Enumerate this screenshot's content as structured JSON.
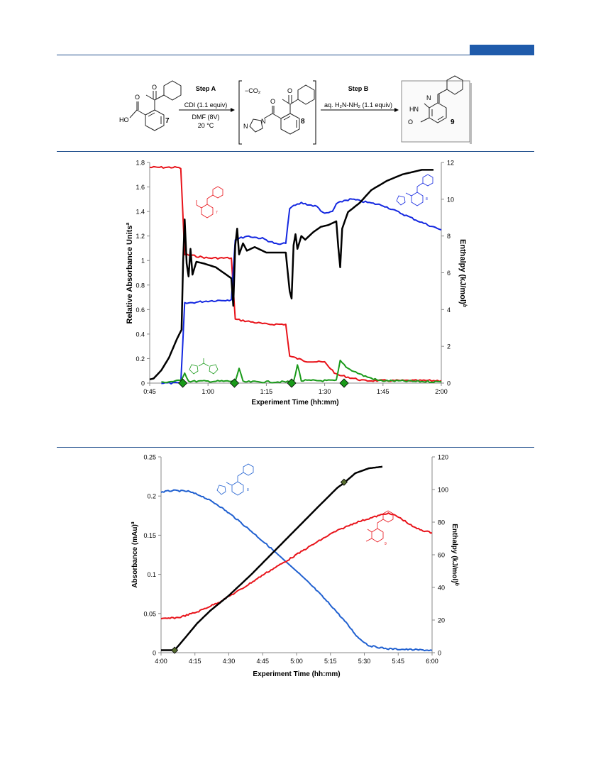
{
  "scheme": {
    "compound7": {
      "label": "7",
      "ho": "HO",
      "o1": "O",
      "o2": "O"
    },
    "stepA": {
      "title": "Step A",
      "reagent": "CDI (1.1 equiv)",
      "solvent": "DMF (8V)",
      "temp": "20 °C"
    },
    "compound8": {
      "label": "8",
      "co2": "−CO₂",
      "n1": "N",
      "n2": "N",
      "o1": "O",
      "o2": "O"
    },
    "stepB": {
      "title": "Step B",
      "reagent": "aq. H₂N-NH₂ (1.1 equiv)"
    },
    "compound9": {
      "label": "9",
      "hn": "HN",
      "n": "N",
      "o": "O"
    }
  },
  "colors": {
    "red": "#e8131a",
    "blue": "#1428e0",
    "black": "#000000",
    "green": "#1a9a1a",
    "blue2": "#2060d0",
    "rule": "#1f4e8c"
  },
  "chart_data": [
    {
      "type": "line",
      "xlabel": "Experiment Time (hh:mm)",
      "ylabel": "Relative Absorbance Units",
      "ylabel_sup": "a",
      "y2label": "Enthalpy (kJ/mol)",
      "y2label_sup": "b",
      "xticks": [
        "0:45",
        "1:00",
        "1:15",
        "1:30",
        "1:45",
        "2:00"
      ],
      "xlim_min": [
        45,
        120
      ],
      "ylim": [
        0,
        1.8
      ],
      "yticks": [
        "0",
        "0.2",
        "0.4",
        "0.6",
        "0.8",
        "1",
        "1.2",
        "1.4",
        "1.6",
        "1.8"
      ],
      "y2lim": [
        0,
        12
      ],
      "y2ticks": [
        "0",
        "2",
        "4",
        "6",
        "8",
        "10",
        "12"
      ],
      "struct_labels": {
        "red": "7",
        "blue": "8"
      },
      "series": [
        {
          "color": "red",
          "axis": "left",
          "points": [
            [
              45,
              1.76
            ],
            [
              52,
              1.76
            ],
            [
              53,
              1.75
            ],
            [
              54,
              1.05
            ],
            [
              60,
              1.02
            ],
            [
              66,
              1.02
            ],
            [
              67,
              0.52
            ],
            [
              75,
              0.48
            ],
            [
              80,
              0.48
            ],
            [
              81,
              0.22
            ],
            [
              85,
              0.18
            ],
            [
              90,
              0.17
            ],
            [
              93,
              0.07
            ],
            [
              100,
              0.02
            ],
            [
              120,
              0.02
            ]
          ]
        },
        {
          "color": "blue",
          "axis": "left",
          "points": [
            [
              48,
              0.0
            ],
            [
              53,
              0.0
            ],
            [
              54,
              0.65
            ],
            [
              60,
              0.67
            ],
            [
              66,
              0.68
            ],
            [
              67,
              1.17
            ],
            [
              70,
              1.2
            ],
            [
              74,
              1.18
            ],
            [
              78,
              1.13
            ],
            [
              80,
              1.14
            ],
            [
              81,
              1.43
            ],
            [
              84,
              1.47
            ],
            [
              88,
              1.44
            ],
            [
              90,
              1.38
            ],
            [
              92,
              1.4
            ],
            [
              93,
              1.46
            ],
            [
              95,
              1.49
            ],
            [
              97,
              1.5
            ],
            [
              100,
              1.48
            ],
            [
              105,
              1.45
            ],
            [
              110,
              1.38
            ],
            [
              115,
              1.31
            ],
            [
              120,
              1.25
            ]
          ]
        },
        {
          "color": "green",
          "axis": "left",
          "points": [
            [
              48,
              0.005
            ],
            [
              53,
              0.02
            ],
            [
              54,
              0.085
            ],
            [
              55,
              0.015
            ],
            [
              67,
              0.015
            ],
            [
              68,
              0.12
            ],
            [
              69,
              0.01
            ],
            [
              82,
              0.01
            ],
            [
              83,
              0.15
            ],
            [
              84,
              0.02
            ],
            [
              93,
              0.02
            ],
            [
              94,
              0.18
            ],
            [
              96,
              0.12
            ],
            [
              100,
              0.06
            ],
            [
              104,
              0.02
            ],
            [
              120,
              0.01
            ]
          ]
        },
        {
          "color": "black",
          "axis": "right",
          "points": [
            [
              45,
              0.2
            ],
            [
              46,
              0.25
            ],
            [
              48,
              0.7
            ],
            [
              50,
              1.4
            ],
            [
              52,
              2.4
            ],
            [
              53.2,
              2.9
            ],
            [
              53.6,
              6.6
            ],
            [
              54,
              8.9
            ],
            [
              54.5,
              6.5
            ],
            [
              55,
              5.8
            ],
            [
              55.5,
              7.3
            ],
            [
              56,
              5.9
            ],
            [
              57,
              6.6
            ],
            [
              59,
              6.5
            ],
            [
              62,
              6.3
            ],
            [
              64,
              6.0
            ],
            [
              66,
              5.7
            ],
            [
              66.5,
              4.2
            ],
            [
              67,
              7.5
            ],
            [
              67.5,
              8.4
            ],
            [
              68,
              7.0
            ],
            [
              69,
              7.6
            ],
            [
              70,
              7.2
            ],
            [
              72,
              7.4
            ],
            [
              75,
              7.1
            ],
            [
              80,
              7.1
            ],
            [
              81,
              5.0
            ],
            [
              81.5,
              4.6
            ],
            [
              82,
              7.5
            ],
            [
              82.5,
              8.1
            ],
            [
              83,
              7.3
            ],
            [
              84,
              8.0
            ],
            [
              85,
              7.8
            ],
            [
              87,
              8.2
            ],
            [
              89,
              8.5
            ],
            [
              91,
              8.6
            ],
            [
              93,
              8.8
            ],
            [
              93.5,
              7.4
            ],
            [
              94,
              6.3
            ],
            [
              94.5,
              8.4
            ],
            [
              96,
              9.3
            ],
            [
              99,
              9.8
            ],
            [
              102,
              10.5
            ],
            [
              106,
              11.0
            ],
            [
              110,
              11.35
            ],
            [
              115,
              11.6
            ],
            [
              118,
              11.6
            ]
          ]
        }
      ],
      "event_markers_x": [
        53.5,
        66.8,
        81.5,
        95.0
      ]
    },
    {
      "type": "line",
      "xlabel": "Experiment Time (hh:mm)",
      "ylabel": "Absorbance (mAu)",
      "ylabel_sup": "a",
      "y2label": "Enthalpy (kJ/mol)",
      "y2label_sup": "b",
      "xticks": [
        "4:00",
        "4:15",
        "4:30",
        "4:45",
        "5:00",
        "5:15",
        "5:30",
        "5:45",
        "6:00"
      ],
      "xlim_min": [
        240,
        360
      ],
      "ylim": [
        0,
        0.25
      ],
      "yticks": [
        "0",
        "0.05",
        "0.1",
        "0.15",
        "0.2",
        "0.25"
      ],
      "y2lim": [
        0,
        120
      ],
      "y2ticks": [
        "0",
        "20",
        "40",
        "60",
        "80",
        "100",
        "120"
      ],
      "struct_labels": {
        "blue": "8",
        "red": "9"
      },
      "series": [
        {
          "color": "blue2",
          "axis": "left",
          "points": [
            [
              240,
              0.205
            ],
            [
              245,
              0.207
            ],
            [
              252,
              0.206
            ],
            [
              258,
              0.2
            ],
            [
              265,
              0.189
            ],
            [
              272,
              0.174
            ],
            [
              280,
              0.155
            ],
            [
              290,
              0.13
            ],
            [
              300,
              0.104
            ],
            [
              308,
              0.082
            ],
            [
              316,
              0.058
            ],
            [
              322,
              0.038
            ],
            [
              327,
              0.02
            ],
            [
              332,
              0.009
            ],
            [
              340,
              0.005
            ],
            [
              350,
              0.004
            ],
            [
              360,
              0.003
            ]
          ]
        },
        {
          "color": "red",
          "axis": "left",
          "points": [
            [
              240,
              0.043
            ],
            [
              248,
              0.045
            ],
            [
              256,
              0.052
            ],
            [
              266,
              0.065
            ],
            [
              276,
              0.082
            ],
            [
              286,
              0.101
            ],
            [
              296,
              0.118
            ],
            [
              306,
              0.136
            ],
            [
              316,
              0.153
            ],
            [
              326,
              0.166
            ],
            [
              334,
              0.173
            ],
            [
              340,
              0.178
            ],
            [
              344,
              0.175
            ],
            [
              348,
              0.168
            ],
            [
              352,
              0.16
            ],
            [
              356,
              0.156
            ],
            [
              360,
              0.153
            ]
          ]
        },
        {
          "color": "black",
          "axis": "right",
          "points": [
            [
              240,
              1.5
            ],
            [
              244,
              1.5
            ],
            [
              246,
              1.5
            ],
            [
              250,
              8
            ],
            [
              256,
              18
            ],
            [
              262,
              26
            ],
            [
              270,
              35
            ],
            [
              280,
              48
            ],
            [
              290,
              62
            ],
            [
              300,
              76
            ],
            [
              310,
              90
            ],
            [
              318,
              101
            ],
            [
              321,
              104
            ],
            [
              326,
              110
            ],
            [
              332,
              113
            ],
            [
              338,
              114
            ]
          ]
        }
      ],
      "event_markers": [
        [
          246,
          1.5
        ],
        [
          321,
          104.5
        ]
      ]
    }
  ]
}
